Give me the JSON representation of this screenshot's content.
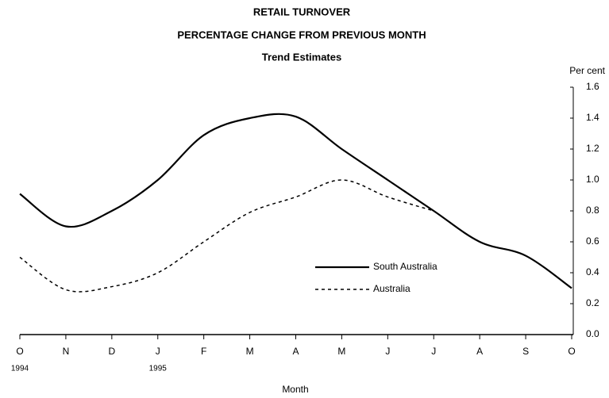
{
  "chart_data": {
    "type": "line",
    "title": [
      "RETAIL TURNOVER",
      "PERCENTAGE CHANGE FROM PREVIOUS MONTH",
      "Trend Estimates"
    ],
    "y_axis_label": "Per cent",
    "x_axis_label": "Month",
    "categories": [
      "O",
      "N",
      "D",
      "J",
      "F",
      "M",
      "A",
      "M",
      "J",
      "J",
      "A",
      "S",
      "O"
    ],
    "year_labels": [
      "1994",
      null,
      null,
      "1995",
      null,
      null,
      null,
      null,
      null,
      null,
      null,
      null,
      null
    ],
    "series": [
      {
        "name": "South Australia",
        "color": "#000000",
        "style": "solid",
        "values": [
          0.91,
          0.7,
          0.8,
          1.0,
          1.29,
          1.4,
          1.41,
          1.2,
          1.0,
          0.8,
          0.6,
          0.51,
          0.3
        ]
      },
      {
        "name": "Australia",
        "color": "#000000",
        "style": "dashed",
        "values": [
          0.5,
          0.29,
          0.31,
          0.4,
          0.6,
          0.79,
          0.89,
          1.0,
          0.89,
          0.8,
          null,
          null,
          null
        ]
      }
    ],
    "ylim": [
      0,
      1.6
    ],
    "yticks": [
      {
        "value": 0,
        "label": "0.0"
      },
      0.2,
      0.4,
      0.6,
      0.8,
      {
        "value": 1,
        "label": "1.0"
      },
      1.2,
      1.4,
      1.6
    ],
    "legend": "center-right"
  }
}
